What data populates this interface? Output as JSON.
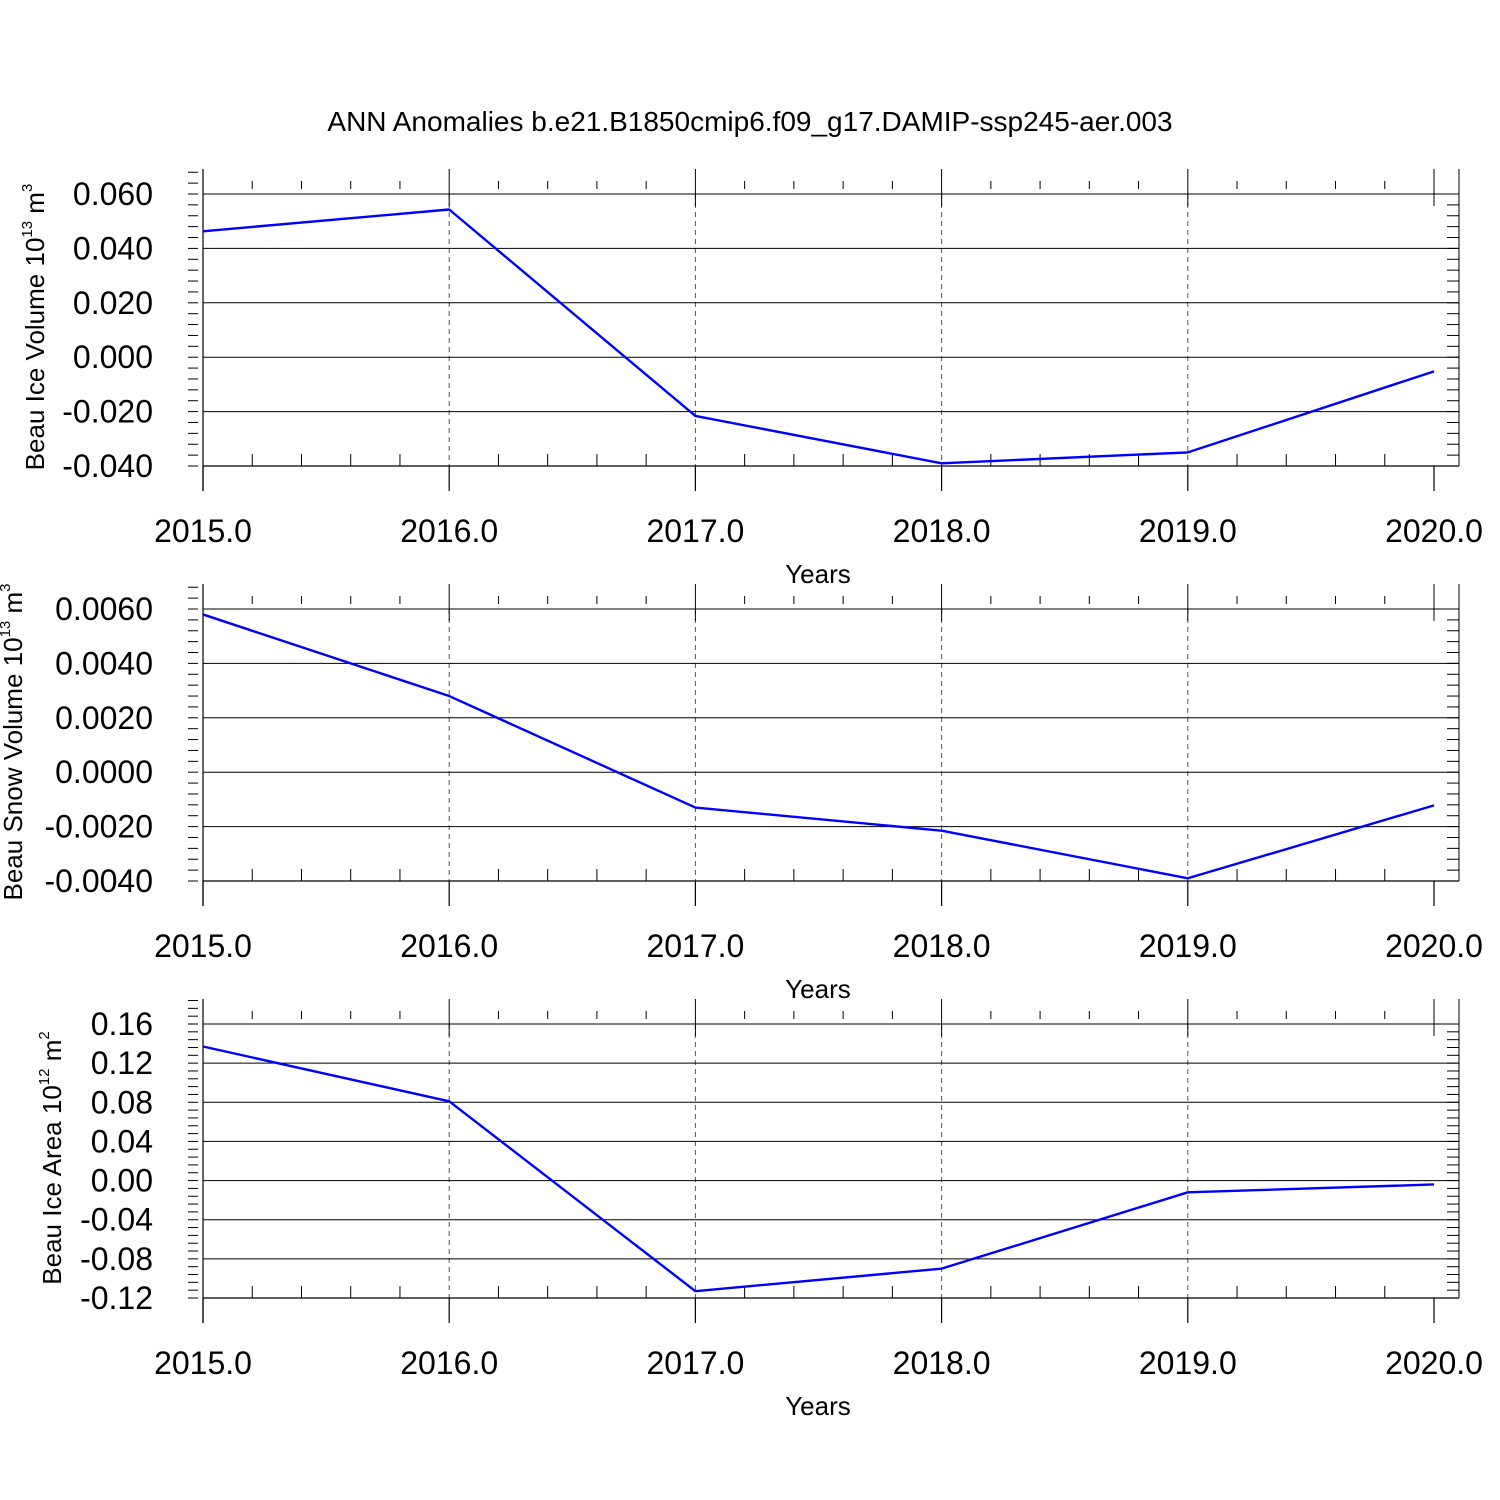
{
  "title": "ANN Anomalies b.e21.B1850cmip6.f09_g17.DAMIP-ssp245-aer.003",
  "colors": {
    "line": "#0000ff",
    "axis": "#000000",
    "grid": "#555555"
  },
  "chart_data": [
    {
      "type": "line",
      "ylabel": {
        "text": "Beau Ice Volume 10",
        "exp": "13",
        "unit": " m",
        "unit_exp": "3"
      },
      "xlabel": "Years",
      "x": [
        2015,
        2016,
        2017,
        2018,
        2019,
        2020
      ],
      "xticks": [
        "2015.0",
        "2016.0",
        "2017.0",
        "2018.0",
        "2019.0",
        "2020.0"
      ],
      "xlim": [
        2015,
        2020
      ],
      "ylim": [
        -0.04,
        0.069
      ],
      "yticks": [
        0.06,
        0.04,
        0.02,
        0.0,
        -0.02,
        -0.04
      ],
      "yticklabels": [
        "0.060",
        "0.040",
        "0.020",
        "0.000",
        "-0.020",
        "-0.040"
      ],
      "yminor": 0.004,
      "series": [
        {
          "values": [
            0.0463,
            0.0543,
            -0.0216,
            -0.039,
            -0.035,
            -0.0052
          ]
        }
      ]
    },
    {
      "type": "line",
      "ylabel": {
        "text": "Beau Snow Volume 10",
        "exp": "13",
        "unit": " m",
        "unit_exp": "3"
      },
      "xlabel": "Years",
      "x": [
        2015,
        2016,
        2017,
        2018,
        2019,
        2020
      ],
      "xticks": [
        "2015.0",
        "2016.0",
        "2017.0",
        "2018.0",
        "2019.0",
        "2020.0"
      ],
      "xlim": [
        2015,
        2020
      ],
      "ylim": [
        -0.004,
        0.0069
      ],
      "yticks": [
        0.006,
        0.004,
        0.002,
        0.0,
        -0.002,
        -0.004
      ],
      "yticklabels": [
        "0.0060",
        "0.0040",
        "0.0020",
        "0.0000",
        "-0.0020",
        "-0.0040"
      ],
      "yminor": 0.0004,
      "series": [
        {
          "values": [
            0.0058,
            0.0028,
            -0.0013,
            -0.00215,
            -0.0039,
            -0.00122
          ]
        }
      ]
    },
    {
      "type": "line",
      "ylabel": {
        "text": "Beau Ice Area 10",
        "exp": "12",
        "unit": " m",
        "unit_exp": "2"
      },
      "xlabel": "Years",
      "x": [
        2015,
        2016,
        2017,
        2018,
        2019,
        2020
      ],
      "xticks": [
        "2015.0",
        "2016.0",
        "2017.0",
        "2018.0",
        "2019.0",
        "2020.0"
      ],
      "xlim": [
        2015,
        2020
      ],
      "ylim": [
        -0.12,
        0.16
      ],
      "yticks": [
        0.16,
        0.12,
        0.08,
        0.04,
        0.0,
        -0.04,
        -0.08,
        -0.12
      ],
      "yticklabels": [
        "0.16",
        "0.12",
        "0.08",
        "0.04",
        "0.00",
        "-0.04",
        "-0.08",
        "-0.12"
      ],
      "yminor": 0.008,
      "series": [
        {
          "values": [
            0.137,
            0.081,
            -0.113,
            -0.09,
            -0.012,
            -0.004
          ]
        }
      ]
    }
  ]
}
